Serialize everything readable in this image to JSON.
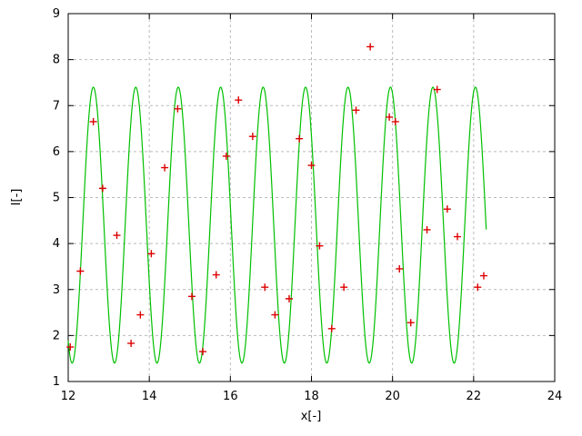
{
  "chart_data": {
    "type": "line+scatter",
    "title": "",
    "xlabel": "x[-]",
    "ylabel": "I[-]",
    "xlim": [
      12,
      24
    ],
    "ylim": [
      1,
      9
    ],
    "xticks": [
      12,
      14,
      16,
      18,
      20,
      22,
      24
    ],
    "yticks": [
      1,
      2,
      3,
      4,
      5,
      6,
      7,
      8,
      9
    ],
    "grid": true,
    "grid_color": "#bbbbbb",
    "border_color": "#000000",
    "curve": {
      "name": "sine-fit-curve",
      "color": "#00c000",
      "model": "cosine",
      "mean": 4.4,
      "amplitude": 3.0,
      "period": 1.047,
      "x_peak": 12.62,
      "x_start": 12.0,
      "x_end": 22.32
    },
    "scatter": {
      "name": "measured-points",
      "color": "#dd0000",
      "marker": "plus",
      "points": [
        [
          12.05,
          1.75
        ],
        [
          12.3,
          3.4
        ],
        [
          12.62,
          6.65
        ],
        [
          12.85,
          5.2
        ],
        [
          13.2,
          4.18
        ],
        [
          13.55,
          1.83
        ],
        [
          13.78,
          2.45
        ],
        [
          14.05,
          3.78
        ],
        [
          14.38,
          5.65
        ],
        [
          14.7,
          6.93
        ],
        [
          15.05,
          2.85
        ],
        [
          15.32,
          1.65
        ],
        [
          15.65,
          3.32
        ],
        [
          15.9,
          5.9
        ],
        [
          16.2,
          7.12
        ],
        [
          16.55,
          6.33
        ],
        [
          16.85,
          3.05
        ],
        [
          17.1,
          2.45
        ],
        [
          17.45,
          2.8
        ],
        [
          17.7,
          6.28
        ],
        [
          18.0,
          5.7
        ],
        [
          18.2,
          3.95
        ],
        [
          18.5,
          2.15
        ],
        [
          18.8,
          3.05
        ],
        [
          19.1,
          6.9
        ],
        [
          19.45,
          8.28
        ],
        [
          19.92,
          6.75
        ],
        [
          20.07,
          6.65
        ],
        [
          20.17,
          3.45
        ],
        [
          20.45,
          2.28
        ],
        [
          20.85,
          4.3
        ],
        [
          21.1,
          7.35
        ],
        [
          21.35,
          4.75
        ],
        [
          21.6,
          4.15
        ],
        [
          22.1,
          3.05
        ],
        [
          22.25,
          3.3
        ]
      ]
    }
  }
}
